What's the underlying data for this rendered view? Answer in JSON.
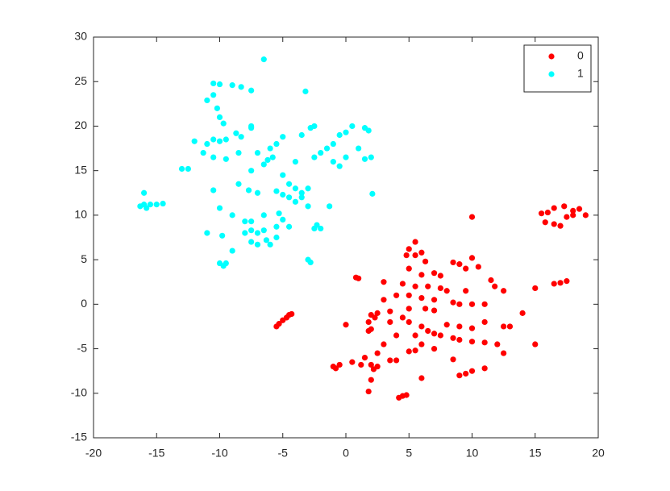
{
  "chart_data": {
    "type": "scatter",
    "xlim": [
      -20,
      20
    ],
    "xticks": [
      -20,
      -15,
      -10,
      -5,
      0,
      5,
      10,
      15,
      20
    ],
    "ylim": [
      -15,
      30
    ],
    "yticks": [
      -15,
      -10,
      -5,
      0,
      5,
      10,
      15,
      20,
      25,
      30
    ],
    "legend": "northeast",
    "series": [
      {
        "name": "0",
        "color": "#ff0000",
        "x": [
          10,
          15.5,
          16,
          16.5,
          17.3,
          18,
          18.5,
          19,
          15.8,
          16.5,
          17,
          17.5,
          18,
          5.5,
          5,
          5.5,
          6,
          4.8,
          6.3,
          8.5,
          9,
          9.5,
          10,
          10.5,
          5,
          6,
          7,
          7.5,
          0.8,
          1,
          3,
          4.5,
          5.5,
          6.5,
          7.5,
          8,
          9.5,
          11.5,
          11.8,
          12.5,
          15,
          16.5,
          17,
          17.5,
          3,
          4,
          5,
          6,
          7,
          8.5,
          9,
          10,
          11,
          5,
          6.3,
          7,
          3.5,
          4.5,
          2,
          2.3,
          2.5,
          1.8,
          -4.3,
          -4.5,
          -4.7,
          -5,
          -5.3,
          -5.5,
          0,
          2,
          1.8,
          3.5,
          5,
          6,
          6.5,
          7,
          8,
          9,
          10,
          11,
          12.5,
          13,
          14,
          4,
          5.5,
          7.5,
          8.5,
          9,
          10,
          11,
          12,
          15,
          3,
          5,
          5.5,
          6,
          7,
          12.5,
          2.5,
          1.5,
          2,
          3.5,
          4,
          8.5,
          0.5,
          -1,
          -0.8,
          -0.5,
          1.2,
          2.2,
          2.5,
          6,
          9,
          9.5,
          10,
          11,
          2,
          1.8,
          4.5,
          4.2,
          4.8
        ],
        "values": [
          9.8,
          10.2,
          10.3,
          10.8,
          11,
          10.5,
          10.7,
          10,
          9.2,
          9,
          8.8,
          9.8,
          10,
          7,
          6.2,
          5.5,
          5.8,
          5.5,
          4.8,
          4.7,
          4.5,
          4,
          5.2,
          4.2,
          4,
          3.3,
          3.5,
          3.2,
          3,
          2.9,
          2.5,
          2.3,
          2,
          2,
          1.8,
          1.5,
          1.5,
          2.7,
          2,
          1.5,
          1.8,
          2.3,
          2.4,
          2.6,
          0.5,
          1,
          1,
          0.7,
          0.5,
          0.2,
          0,
          0,
          0,
          -0.5,
          -0.5,
          -0.7,
          -0.8,
          -1.5,
          -1.2,
          -1.5,
          -1,
          -2,
          -1.1,
          -1.2,
          -1.5,
          -1.8,
          -2.2,
          -2.5,
          -2.3,
          -2.8,
          -3,
          -2,
          -2,
          -2.5,
          -3,
          -3.3,
          -2.3,
          -2.5,
          -2.7,
          -2,
          -2.5,
          -2.5,
          -1,
          -3.5,
          -3.5,
          -3.5,
          -3.8,
          -4,
          -4.2,
          -4.3,
          -4.5,
          -4.5,
          -4.5,
          -5.3,
          -5.2,
          -4.5,
          -5,
          -5.5,
          -5.5,
          -6,
          -6.8,
          -6.3,
          -6.3,
          -6.2,
          -6.5,
          -7,
          -7.2,
          -6.8,
          -6.8,
          -7.3,
          -7,
          -8.3,
          -8,
          -7.8,
          -7.5,
          -7.2,
          -8.5,
          -9.8,
          -10.3,
          -10.5,
          -10.2
        ]
      },
      {
        "name": "1",
        "color": "#00ffff",
        "x": [
          -6.5,
          -10.5,
          -10,
          -9,
          -8.3,
          -7.5,
          -11,
          -10.5,
          -10.2,
          -10,
          -9.7,
          -3.2,
          -12,
          -11,
          -10.5,
          -10,
          -9.5,
          -8.7,
          -8.3,
          -7.5,
          -7,
          -7.5,
          -6,
          -5.8,
          -5.5,
          -5,
          -4,
          -3.5,
          -2.8,
          -2.5,
          -2,
          -1.5,
          -1,
          -0.5,
          0,
          0.5,
          1.5,
          1.8,
          1,
          1.5,
          2,
          -11.3,
          -10.5,
          -9.5,
          -8.5,
          -13,
          -12.5,
          -6.5,
          -6.2,
          -7.5,
          -5,
          -4.5,
          -4,
          -3.5,
          -3,
          -2.5,
          -1,
          -0.5,
          0,
          -10.5,
          -8.5,
          -7.7,
          -7,
          -5.5,
          -5,
          -4.5,
          -4,
          -3.5,
          -3,
          -1.3,
          2.1,
          -16,
          -16.3,
          -16,
          -15.8,
          -15.5,
          -15,
          -14.5,
          -10,
          -9,
          -8,
          -7.5,
          -6.5,
          -5.3,
          -5,
          -5.5,
          -4.5,
          -2.5,
          -2.3,
          -2,
          -11,
          -9.8,
          -8,
          -7.5,
          -7,
          -6.5,
          -6.3,
          -5.5,
          -7.5,
          -7,
          -6,
          -9,
          -10,
          -9.7,
          -9.5,
          -3,
          -2.8
        ],
        "values": [
          27.5,
          24.8,
          24.7,
          24.6,
          24.4,
          24,
          22.9,
          23.5,
          22,
          21,
          20.3,
          23.9,
          18.3,
          18,
          18.5,
          18.3,
          18.5,
          19.2,
          18.8,
          19.8,
          17,
          20,
          17.5,
          16.5,
          18,
          18.8,
          16,
          19,
          19.8,
          20,
          17,
          17.5,
          18,
          19,
          19.3,
          20,
          19.8,
          19.5,
          17.5,
          16.3,
          16.5,
          17,
          16.5,
          16.3,
          17,
          15.2,
          15.2,
          15.7,
          16.2,
          15,
          14.5,
          13.5,
          13,
          12.5,
          13,
          16.5,
          16,
          15.5,
          16.5,
          12.8,
          13.5,
          12.8,
          12.5,
          12.7,
          12.3,
          12,
          11.5,
          12,
          11,
          11,
          12.4,
          12.5,
          11,
          11.2,
          10.8,
          11.2,
          11.2,
          11.3,
          10.8,
          10,
          9.3,
          9.3,
          10,
          10.2,
          9.5,
          8.7,
          8.7,
          8.5,
          8.9,
          8.5,
          8,
          7.7,
          8,
          8.3,
          8,
          8.3,
          7.2,
          7.5,
          7,
          6.7,
          6.7,
          6,
          4.6,
          4.3,
          4.6,
          5,
          4.7
        ]
      }
    ]
  }
}
